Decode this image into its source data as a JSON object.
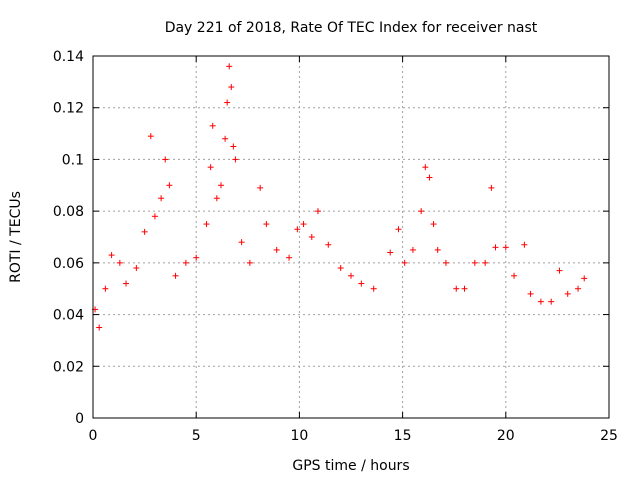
{
  "chart_data": {
    "type": "scatter",
    "title": "Day 221 of 2018, Rate Of TEC Index for receiver nast",
    "xlabel": "GPS time / hours",
    "ylabel": "ROTI / TECUs",
    "xlim": [
      0,
      25
    ],
    "ylim": [
      0,
      0.14
    ],
    "xticks": [
      0,
      5,
      10,
      15,
      20,
      25
    ],
    "xtick_labels": [
      "0",
      "5",
      "10",
      "15",
      "20",
      "25"
    ],
    "yticks": [
      0,
      0.02,
      0.04,
      0.06,
      0.08,
      0.1,
      0.12,
      0.14
    ],
    "ytick_labels": [
      "0",
      "0.02",
      "0.04",
      "0.06",
      "0.08",
      "0.1",
      "0.12",
      "0.14"
    ],
    "grid": true,
    "marker": "+",
    "color": "#ff0000",
    "series": [
      {
        "name": "ROTI",
        "points": [
          [
            0.1,
            0.042
          ],
          [
            0.3,
            0.035
          ],
          [
            0.6,
            0.05
          ],
          [
            0.9,
            0.063
          ],
          [
            1.3,
            0.06
          ],
          [
            1.6,
            0.052
          ],
          [
            2.1,
            0.058
          ],
          [
            2.5,
            0.072
          ],
          [
            2.8,
            0.109
          ],
          [
            3.0,
            0.078
          ],
          [
            3.3,
            0.085
          ],
          [
            3.5,
            0.1
          ],
          [
            3.7,
            0.09
          ],
          [
            4.0,
            0.055
          ],
          [
            4.5,
            0.06
          ],
          [
            5.0,
            0.062
          ],
          [
            5.5,
            0.075
          ],
          [
            5.7,
            0.097
          ],
          [
            5.8,
            0.113
          ],
          [
            6.0,
            0.085
          ],
          [
            6.2,
            0.09
          ],
          [
            6.4,
            0.108
          ],
          [
            6.5,
            0.122
          ],
          [
            6.6,
            0.136
          ],
          [
            6.7,
            0.128
          ],
          [
            6.8,
            0.105
          ],
          [
            6.9,
            0.1
          ],
          [
            7.2,
            0.068
          ],
          [
            7.6,
            0.06
          ],
          [
            8.1,
            0.089
          ],
          [
            8.4,
            0.075
          ],
          [
            8.9,
            0.065
          ],
          [
            9.5,
            0.062
          ],
          [
            9.9,
            0.073
          ],
          [
            10.2,
            0.075
          ],
          [
            10.6,
            0.07
          ],
          [
            10.9,
            0.08
          ],
          [
            11.4,
            0.067
          ],
          [
            12.0,
            0.058
          ],
          [
            12.5,
            0.055
          ],
          [
            13.0,
            0.052
          ],
          [
            13.6,
            0.05
          ],
          [
            14.4,
            0.064
          ],
          [
            14.8,
            0.073
          ],
          [
            15.1,
            0.06
          ],
          [
            15.5,
            0.065
          ],
          [
            15.9,
            0.08
          ],
          [
            16.1,
            0.097
          ],
          [
            16.3,
            0.093
          ],
          [
            16.5,
            0.075
          ],
          [
            16.7,
            0.065
          ],
          [
            17.1,
            0.06
          ],
          [
            17.6,
            0.05
          ],
          [
            18.0,
            0.05
          ],
          [
            18.5,
            0.06
          ],
          [
            19.0,
            0.06
          ],
          [
            19.3,
            0.089
          ],
          [
            19.5,
            0.066
          ],
          [
            20.0,
            0.066
          ],
          [
            20.4,
            0.055
          ],
          [
            20.9,
            0.067
          ],
          [
            21.2,
            0.048
          ],
          [
            21.7,
            0.045
          ],
          [
            22.2,
            0.045
          ],
          [
            22.6,
            0.057
          ],
          [
            23.0,
            0.048
          ],
          [
            23.5,
            0.05
          ],
          [
            23.8,
            0.054
          ]
        ]
      }
    ]
  }
}
